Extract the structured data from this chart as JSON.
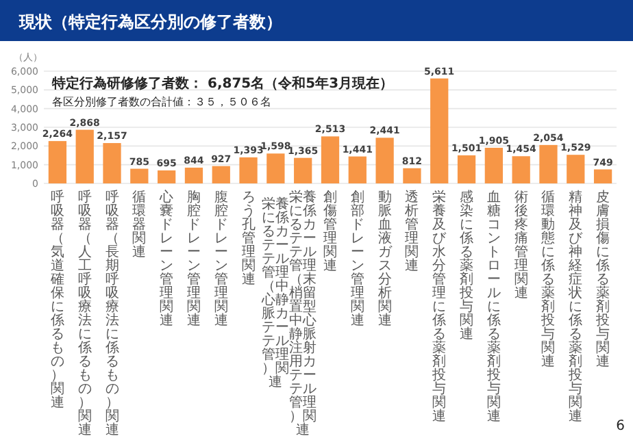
{
  "chart_data": {
    "type": "bar",
    "title": "現状（特定行為区分別の修了者数）",
    "ylabel": "（人）",
    "categories": [
      "呼吸器（気道確保に係るもの）関連",
      "呼吸器（人工呼吸療法に係るもの）関連",
      "呼吸器（長期呼吸療法に係るもの）関連",
      "循環器関連",
      "心嚢ドレーン管理関連",
      "胸腔ドレーン管理関連",
      "腹腔ドレーン管理関連",
      "ろう孔管理関連",
      "栄養に係るカテーテル管理（中心静脈カテーテル管理）関連",
      "栄養に係るカテーテル管理（末梢留置型中心静脈注射用カテーテル管理）関連",
      "創傷管理関連",
      "創部ドレーン管理関連",
      "動脈血液ガス分析関連",
      "透析管理関連",
      "栄養及び水分管理に係る薬剤投与関連",
      "感染に係る薬剤投与関連",
      "血糖コントロールに係る薬剤投与関連",
      "術後疼痛管理関連",
      "循環動態に係る薬剤投与関連",
      "精神及び神経症状に係る薬剤投与関連",
      "皮膚損傷に係る薬剤投与関連"
    ],
    "values": [
      2264,
      2868,
      2157,
      785,
      695,
      844,
      927,
      1393,
      1598,
      1365,
      2513,
      1441,
      2441,
      812,
      5611,
      1501,
      1905,
      1454,
      2054,
      1529,
      749
    ],
    "value_labels": [
      "2,264",
      "2,868",
      "2,157",
      "785",
      "695",
      "844",
      "927",
      "1,393",
      "1,598",
      "1,365",
      "2,513",
      "1,441",
      "2,441",
      "812",
      "5,611",
      "1,501",
      "1,905",
      "1,454",
      "2,054",
      "1,529",
      "749"
    ],
    "color": "#f79646",
    "ylim": [
      0,
      6000
    ],
    "yticks": [
      0,
      {
        "value": 1000,
        "label": "1,000"
      },
      {
        "value": 2000,
        "label": "2,000"
      },
      {
        "value": 3000,
        "label": "3,000"
      },
      {
        "value": 4000,
        "label": "4,000"
      },
      {
        "value": 5000,
        "label": "5,000"
      },
      {
        "value": 6000,
        "label": "6,000"
      }
    ],
    "grid": "y",
    "annotations": [
      "特定行為研修修了者数： 6,875名（令和5年3月現在）",
      "各区分別修了者数の合計値：３５，５０６名",
      "6"
    ]
  }
}
